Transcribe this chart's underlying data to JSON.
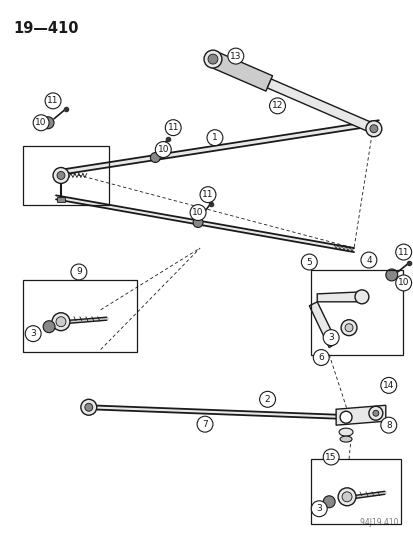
{
  "title": "19—410",
  "bg_color": "#ffffff",
  "line_color": "#1a1a1a",
  "fig_width": 4.14,
  "fig_height": 5.33,
  "dpi": 100,
  "watermark": "94J19 410",
  "gray_dark": "#333333",
  "gray_med": "#888888",
  "gray_light": "#cccccc",
  "gray_fill": "#e8e8e8"
}
